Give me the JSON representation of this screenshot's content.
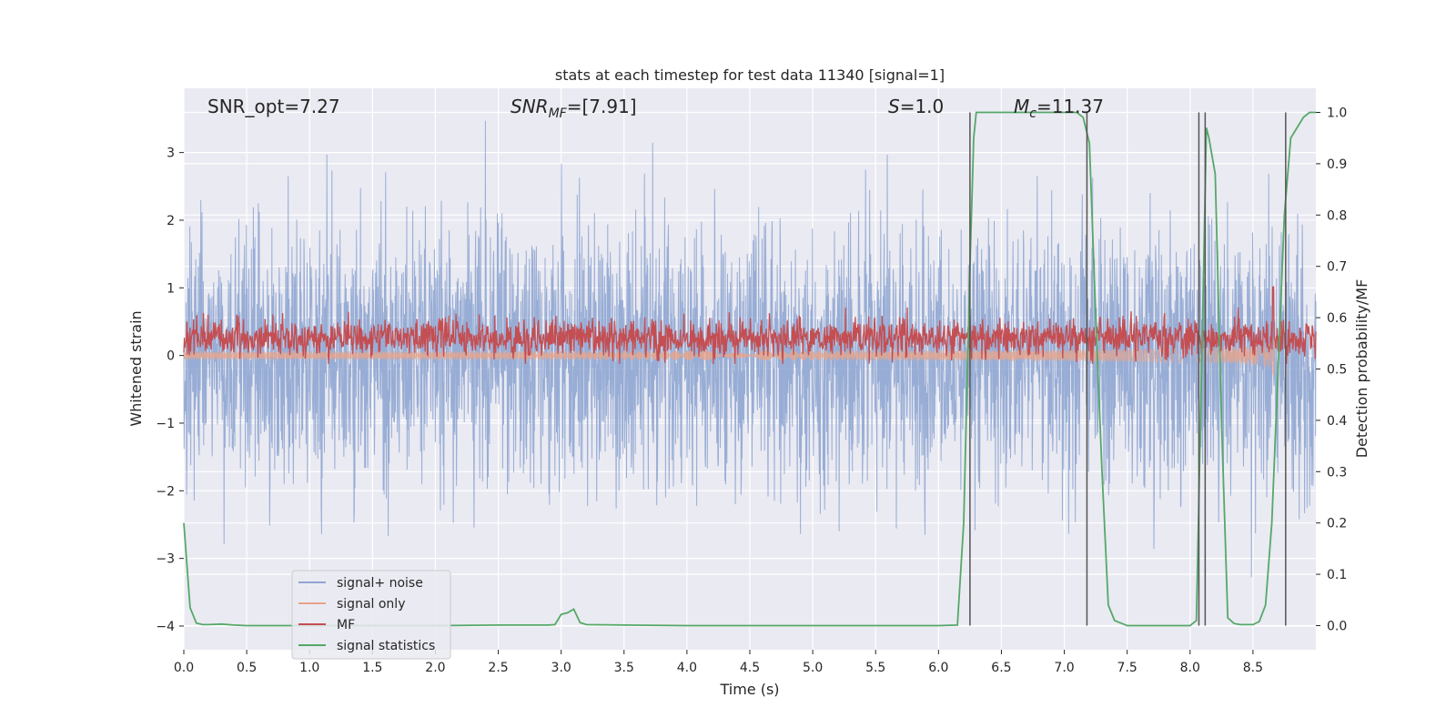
{
  "chart_data": {
    "type": "line",
    "title": "stats at each timestep for test data 11340 [signal=1]",
    "xlabel": "Time (s)",
    "ylabel_left": "Whitened strain",
    "ylabel_right": "Detection probability/MF",
    "xlim": [
      0.0,
      9.0
    ],
    "ylim_left": [
      -4.35,
      3.95
    ],
    "ylim_right": [
      -0.047,
      1.047
    ],
    "x_ticks": [
      "0.0",
      "0.5",
      "1.0",
      "1.5",
      "2.0",
      "2.5",
      "3.0",
      "3.5",
      "4.0",
      "4.5",
      "5.0",
      "5.5",
      "6.0",
      "6.5",
      "7.0",
      "7.5",
      "8.0",
      "8.5"
    ],
    "y_ticks_left": [
      "−4",
      "−3",
      "−2",
      "−1",
      "0",
      "1",
      "2",
      "3"
    ],
    "y_ticks_right": [
      "0.0",
      "0.1",
      "0.2",
      "0.3",
      "0.4",
      "0.5",
      "0.6",
      "0.7",
      "0.8",
      "0.9",
      "1.0"
    ],
    "grid": true,
    "legend_position": "lower-left",
    "annotations": {
      "snr_opt": "SNR_opt=7.27",
      "snr_mf_prefix": "SNR",
      "snr_mf_sub": "MF",
      "snr_mf_suffix": "=[7.91]",
      "s_prefix": "S",
      "s_suffix": "=1.0",
      "mc_prefix": "M",
      "mc_sub": "c",
      "mc_suffix": "=11.37"
    },
    "series": [
      {
        "name": "signal+ noise",
        "color": "#8fa6d1",
        "kind": "noise_strain",
        "amplitude_range": [
          -4.0,
          3.55
        ]
      },
      {
        "name": "signal only",
        "color": "#e8a48a",
        "kind": "chirp",
        "peak_time": 8.67,
        "peak_amplitude": 0.45
      },
      {
        "name": "MF",
        "color": "#c44e52",
        "kind": "matched_filter",
        "baseline_axis": "right",
        "baseline_range": [
          0.52,
          0.61
        ],
        "peak": {
          "x": 8.66,
          "y": 0.66
        }
      },
      {
        "name": "signal statistics",
        "color": "#55a868",
        "axis": "right",
        "x": [
          0.0,
          0.05,
          0.1,
          0.15,
          0.2,
          0.3,
          0.4,
          0.5,
          1.0,
          1.5,
          2.0,
          2.5,
          2.9,
          2.95,
          3.0,
          3.05,
          3.1,
          3.15,
          3.2,
          3.5,
          4.0,
          5.0,
          6.0,
          6.15,
          6.2,
          6.25,
          6.28,
          6.3,
          6.5,
          6.7,
          7.0,
          7.1,
          7.15,
          7.2,
          7.25,
          7.3,
          7.35,
          7.4,
          7.5,
          8.0,
          8.05,
          8.1,
          8.13,
          8.15,
          8.2,
          8.25,
          8.3,
          8.35,
          8.4,
          8.5,
          8.55,
          8.6,
          8.65,
          8.7,
          8.75,
          8.8,
          8.85,
          8.9,
          8.95,
          9.0
        ],
        "y": [
          0.2,
          0.035,
          0.005,
          0.002,
          0.002,
          0.003,
          0.001,
          0.0,
          0.0,
          0.0,
          0.0,
          0.001,
          0.001,
          0.002,
          0.022,
          0.025,
          0.032,
          0.006,
          0.002,
          0.001,
          0.0,
          0.0,
          0.0,
          0.001,
          0.2,
          0.7,
          0.95,
          1.0,
          1.0,
          1.0,
          1.0,
          1.0,
          0.99,
          0.94,
          0.6,
          0.3,
          0.04,
          0.01,
          0.0,
          0.0,
          0.01,
          0.6,
          0.97,
          0.95,
          0.88,
          0.4,
          0.015,
          0.004,
          0.002,
          0.002,
          0.008,
          0.04,
          0.2,
          0.5,
          0.8,
          0.95,
          0.97,
          0.99,
          1.0,
          1.0
        ]
      }
    ],
    "vertical_lines_x": [
      6.25,
      7.18,
      8.07,
      8.12,
      8.76
    ]
  }
}
